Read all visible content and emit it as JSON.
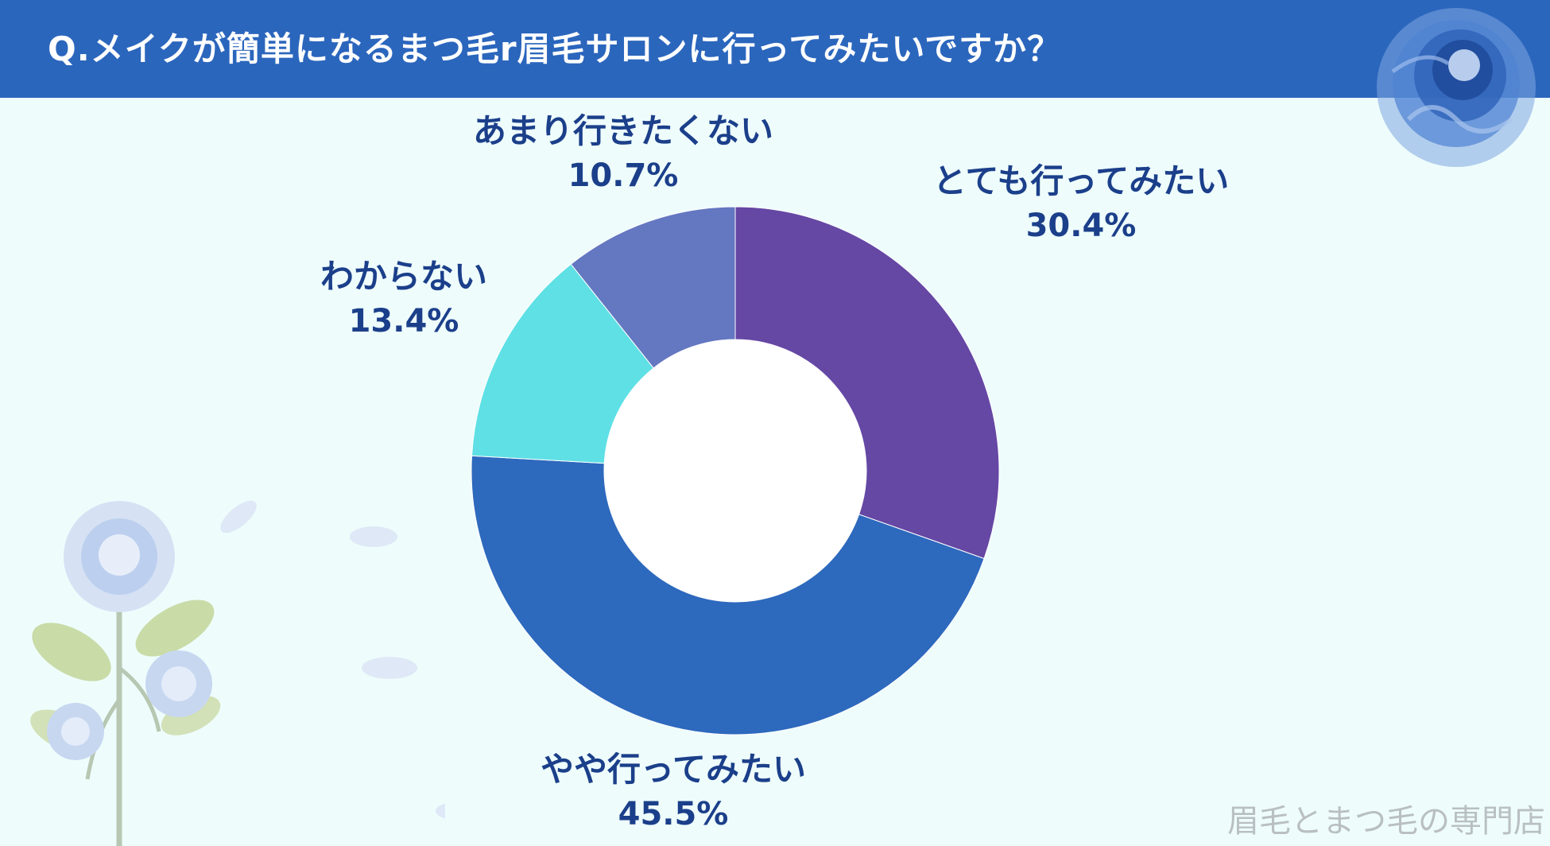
{
  "header": {
    "title": "Q.メイクが簡単になるまつ毛r眉毛サロンに行ってみたいですか？"
  },
  "chart_data": {
    "type": "pie",
    "donut": true,
    "categories": [
      "とても行ってみたい",
      "やや行ってみたい",
      "わからない",
      "あまり行きたくない"
    ],
    "values": [
      30.4,
      45.5,
      13.4,
      10.7
    ],
    "value_labels": [
      "30.4%",
      "45.5%",
      "13.4%",
      "10.7%"
    ],
    "colors": [
      "#6547a4",
      "#2d69bd",
      "#5ee0e5",
      "#6477c1"
    ],
    "legend": "none"
  },
  "watermark": "眉毛とまつ毛の専門店",
  "icons": [
    "blue-rose-corner-icon",
    "white-rose-decoration-icon"
  ]
}
